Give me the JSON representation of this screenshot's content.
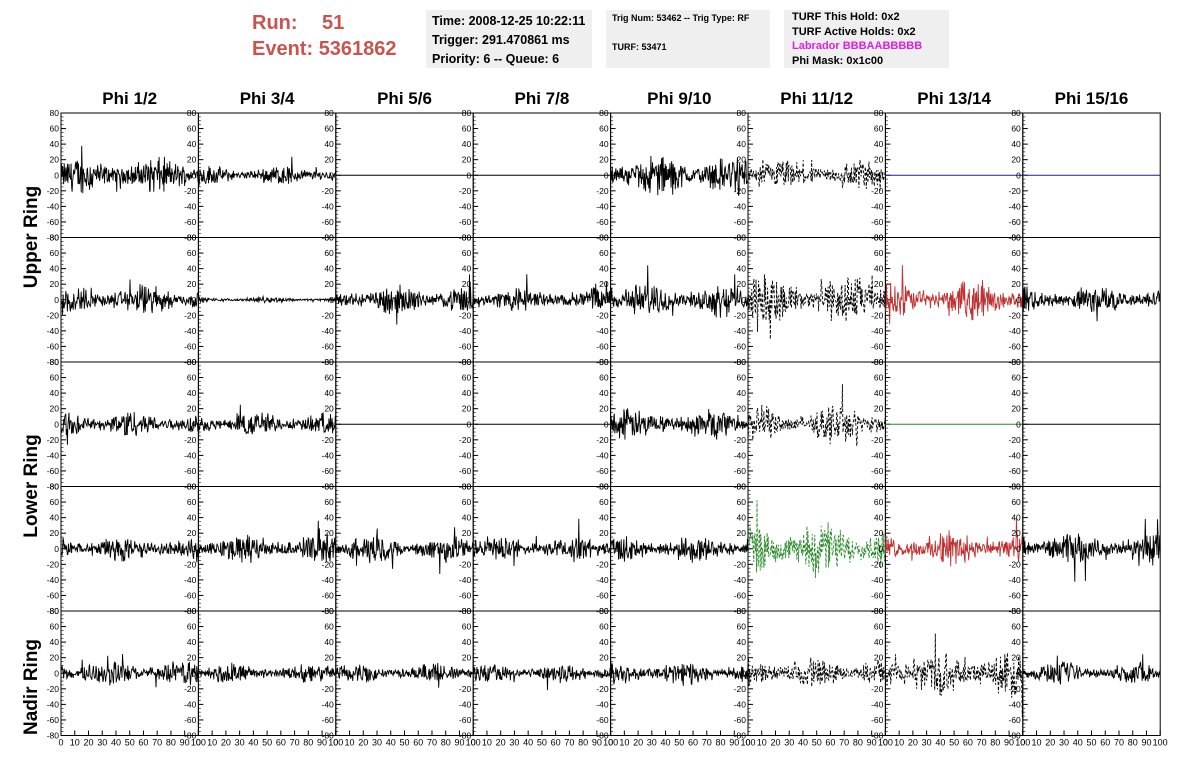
{
  "header": {
    "run_label": "Run:",
    "run_value": "51",
    "event_label": "Event:",
    "event_value": "5361862",
    "time": "Time: 2008-12-25 10:22:11",
    "trigger": "Trigger: 291.470861 ms",
    "priority": "Priority: 6 -- Queue: 6",
    "trig_line": "Trig Num: 53462 -- Trig Type: RF",
    "turf_line": "TURF: 53471",
    "turf_this_hold": "TURF This Hold: 0x2",
    "turf_active_holds": "TURF Active Holds: 0x2",
    "labrador": "Labrador BBBAABBBBB",
    "phi_mask": "Phi Mask: 0x1c00"
  },
  "rings": {
    "upper": "Upper Ring",
    "lower": "Lower Ring",
    "nadir": "Nadir Ring"
  },
  "chart_data": {
    "type": "line",
    "columns": [
      "Phi 1/2",
      "Phi 3/4",
      "Phi 5/6",
      "Phi 7/8",
      "Phi 9/10",
      "Phi 11/12",
      "Phi 13/14",
      "Phi 15/16"
    ],
    "y_ticks": [
      -80,
      -60,
      -40,
      -20,
      0,
      20,
      40,
      60,
      80
    ],
    "x_ticks": [
      0,
      10,
      20,
      30,
      40,
      50,
      60,
      70,
      80,
      90,
      100
    ],
    "ylim": [
      -80,
      80
    ],
    "xlim": [
      0,
      100
    ],
    "rows": [
      {
        "amplitudes": [
          20,
          11,
          0,
          0,
          22,
          17,
          0,
          0
        ],
        "styles": [
          "solid",
          "solid",
          "flat",
          "flat",
          "solid",
          "dashed",
          "flat-blue",
          "flat-blue"
        ],
        "colors": [
          "#000000",
          "#000000",
          "#000000",
          "#000000",
          "#000000",
          "#000000",
          "#1a1aa0",
          "#1a1aa0"
        ]
      },
      {
        "amplitudes": [
          17,
          3,
          16,
          14,
          18,
          28,
          20,
          15
        ],
        "styles": [
          "solid",
          "solid",
          "solid",
          "solid",
          "solid",
          "dashed",
          "solid",
          "solid"
        ],
        "colors": [
          "#000000",
          "#000000",
          "#000000",
          "#000000",
          "#000000",
          "#000000",
          "#c03030",
          "#000000"
        ]
      },
      {
        "amplitudes": [
          15,
          14,
          0,
          0,
          17,
          20,
          0,
          0
        ],
        "styles": [
          "solid",
          "solid",
          "flat",
          "flat",
          "solid",
          "dashed",
          "flat-green",
          "flat"
        ],
        "colors": [
          "#000000",
          "#000000",
          "#000000",
          "#000000",
          "#000000",
          "#000000",
          "#2a8a2a",
          "#000000"
        ]
      },
      {
        "amplitudes": [
          14,
          16,
          15,
          14,
          14,
          30,
          18,
          17
        ],
        "styles": [
          "solid",
          "solid",
          "solid",
          "solid",
          "solid",
          "dashed",
          "solid",
          "solid"
        ],
        "colors": [
          "#000000",
          "#000000",
          "#000000",
          "#000000",
          "#000000",
          "#2a8a2a",
          "#c03030",
          "#000000"
        ]
      },
      {
        "amplitudes": [
          14,
          11,
          11,
          11,
          13,
          17,
          25,
          12
        ],
        "styles": [
          "solid",
          "solid",
          "solid",
          "solid",
          "solid",
          "dashed",
          "dashed",
          "solid"
        ],
        "colors": [
          "#000000",
          "#000000",
          "#000000",
          "#000000",
          "#000000",
          "#000000",
          "#000000",
          "#000000"
        ]
      }
    ]
  }
}
